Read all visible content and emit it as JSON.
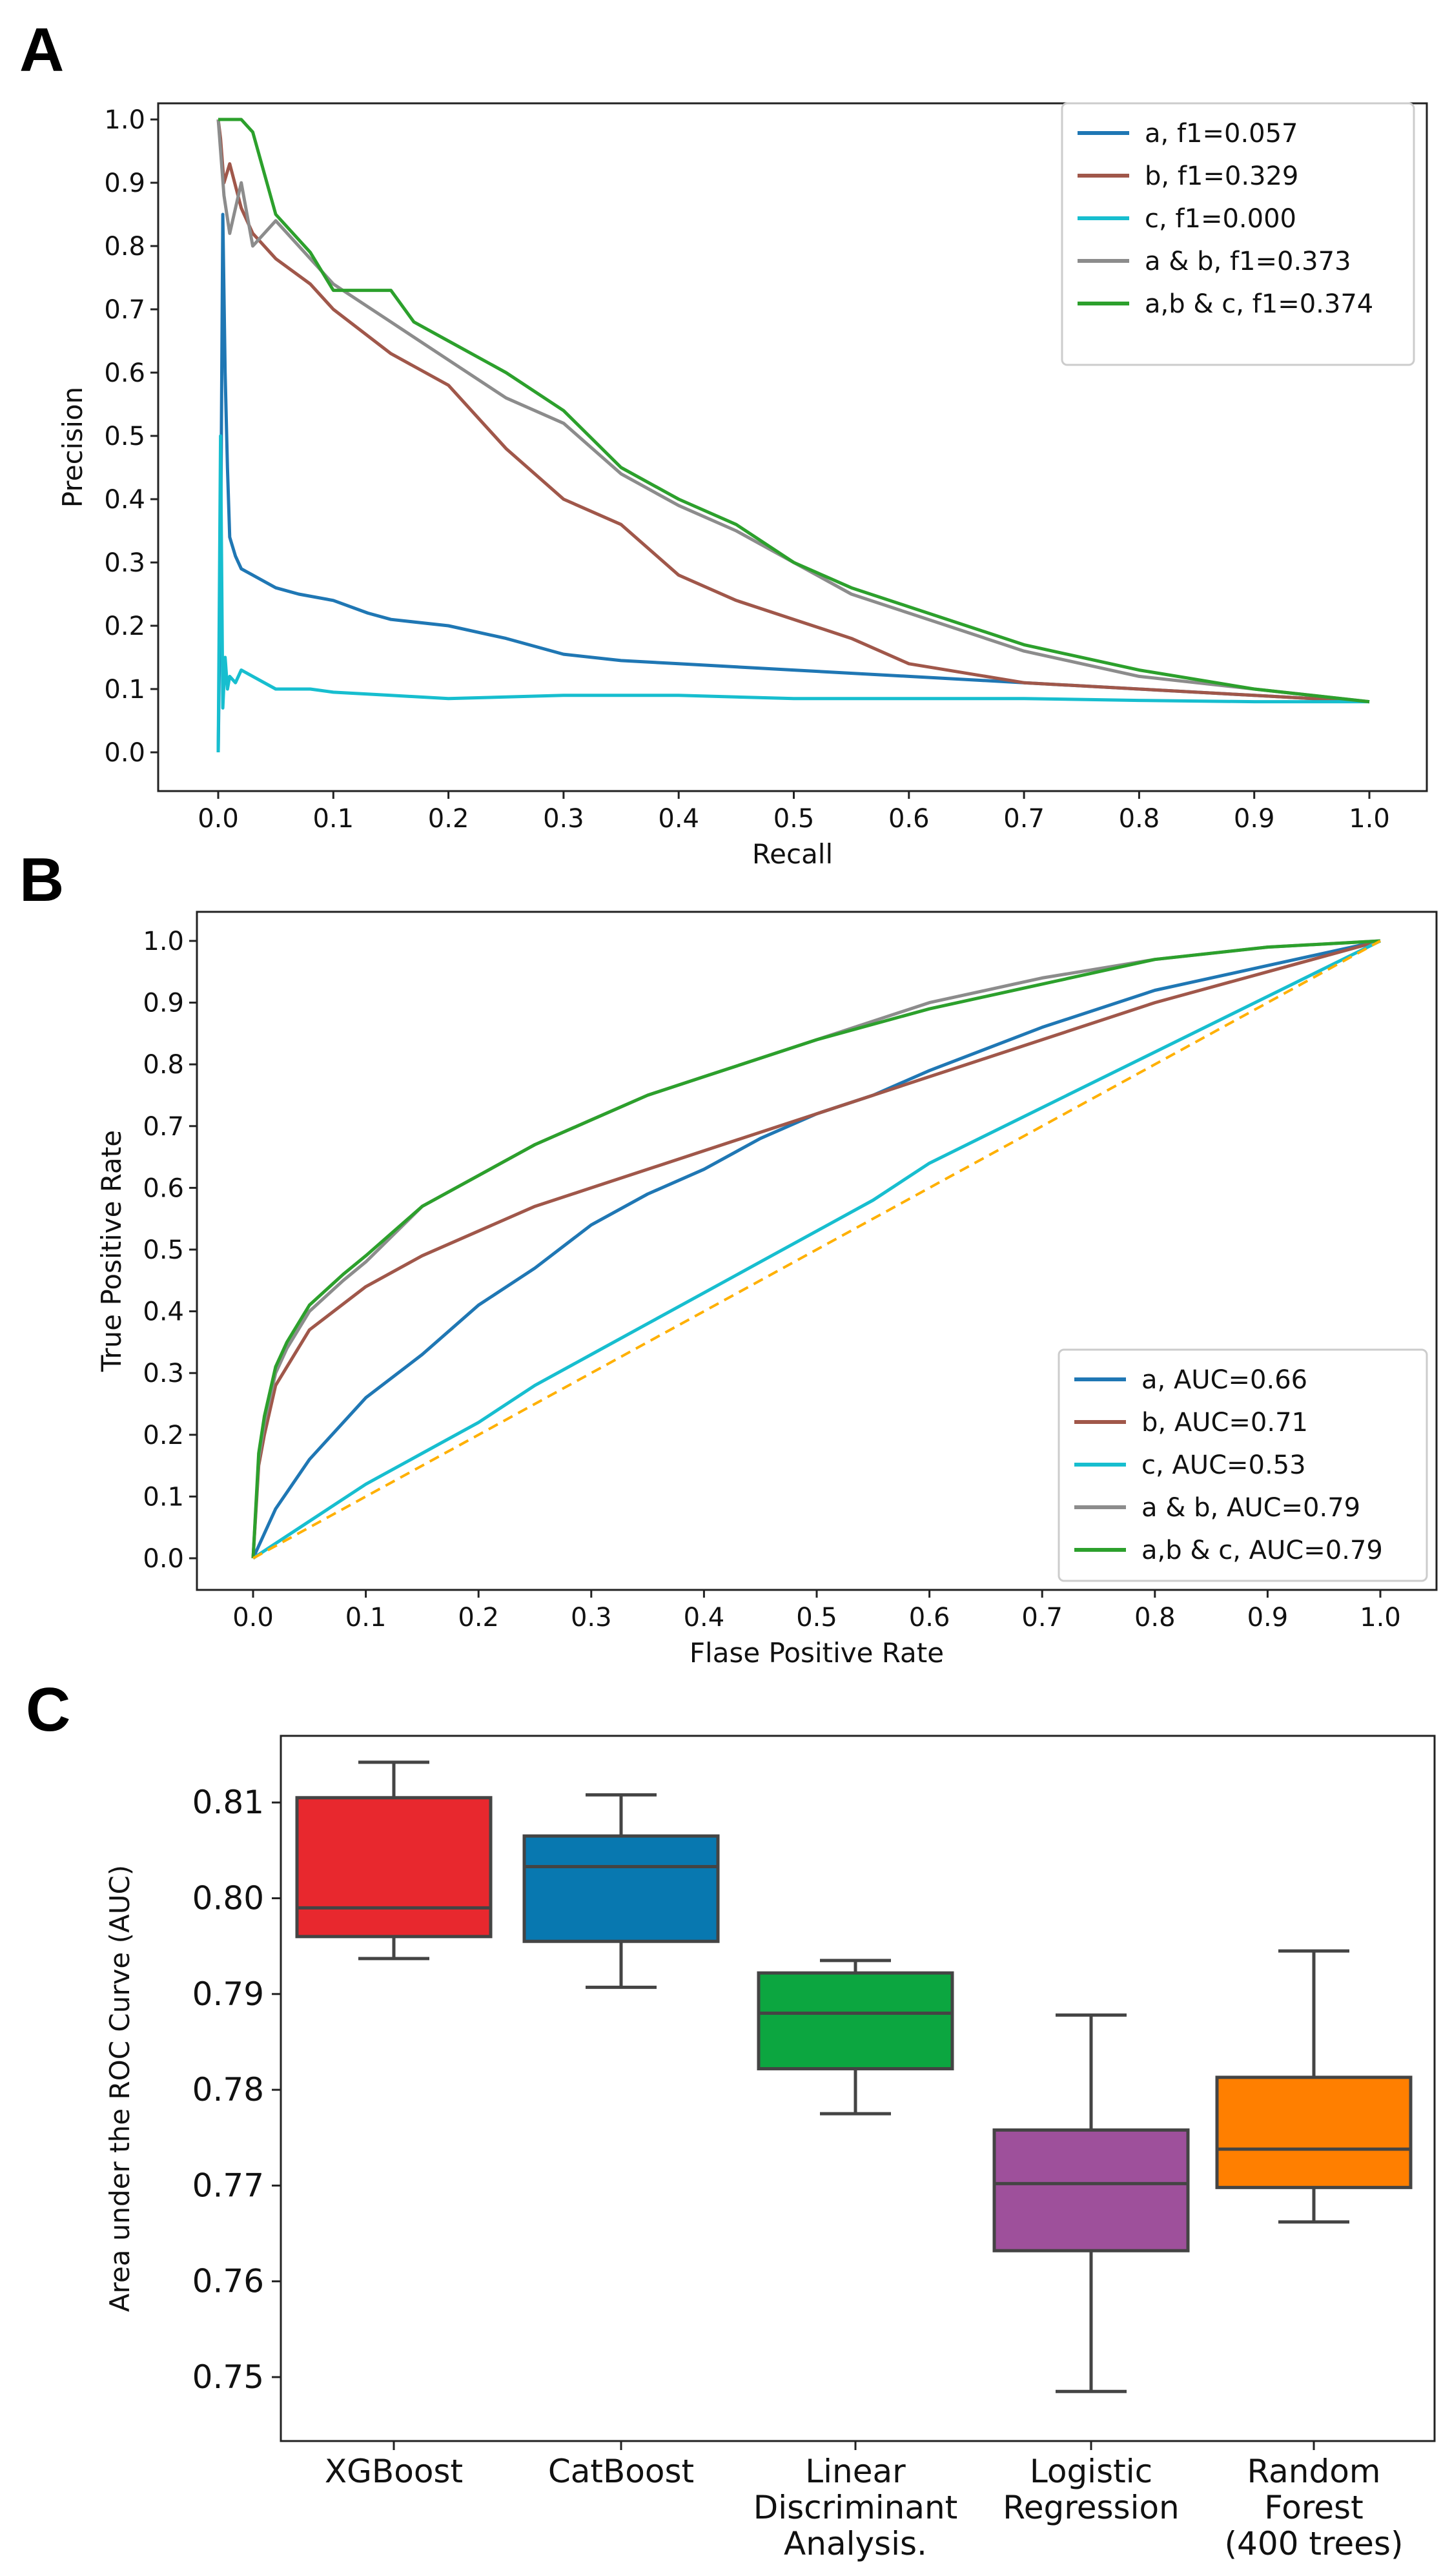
{
  "panels": {
    "a": "A",
    "b": "B",
    "c": "C"
  },
  "chart_data": [
    {
      "type": "line",
      "title": "",
      "xlabel": "Recall",
      "ylabel": "Precision",
      "xlim": [
        0,
        1
      ],
      "ylim": [
        0,
        1
      ],
      "xticks": [
        "0.0",
        "0.1",
        "0.2",
        "0.3",
        "0.4",
        "0.5",
        "0.6",
        "0.7",
        "0.8",
        "0.9",
        "1.0"
      ],
      "yticks": [
        "0.0",
        "0.1",
        "0.2",
        "0.3",
        "0.4",
        "0.5",
        "0.6",
        "0.7",
        "0.8",
        "0.9",
        "1.0"
      ],
      "legend_position": "top-right",
      "series": [
        {
          "name": "a, f1=0.057",
          "color": "#1f77b4",
          "x": [
            0,
            0.002,
            0.004,
            0.006,
            0.008,
            0.01,
            0.015,
            0.02,
            0.03,
            0.05,
            0.07,
            0.1,
            0.13,
            0.15,
            0.2,
            0.25,
            0.3,
            0.35,
            0.4,
            0.5,
            0.6,
            0.7,
            0.8,
            0.9,
            1.0
          ],
          "y": [
            0,
            0.3,
            0.85,
            0.6,
            0.45,
            0.34,
            0.31,
            0.29,
            0.28,
            0.26,
            0.25,
            0.24,
            0.22,
            0.21,
            0.2,
            0.18,
            0.155,
            0.145,
            0.14,
            0.13,
            0.12,
            0.11,
            0.1,
            0.09,
            0.08
          ]
        },
        {
          "name": "b, f1=0.329",
          "color": "#a0574a",
          "x": [
            0,
            0.002,
            0.005,
            0.01,
            0.02,
            0.03,
            0.05,
            0.08,
            0.1,
            0.15,
            0.2,
            0.25,
            0.3,
            0.35,
            0.4,
            0.45,
            0.5,
            0.55,
            0.6,
            0.7,
            0.8,
            0.9,
            1.0
          ],
          "y": [
            1.0,
            0.97,
            0.9,
            0.93,
            0.86,
            0.82,
            0.78,
            0.74,
            0.7,
            0.63,
            0.58,
            0.48,
            0.4,
            0.36,
            0.28,
            0.24,
            0.21,
            0.18,
            0.14,
            0.11,
            0.1,
            0.09,
            0.08
          ]
        },
        {
          "name": "c, f1=0.000",
          "color": "#17becf",
          "x": [
            0,
            0.002,
            0.004,
            0.006,
            0.008,
            0.01,
            0.015,
            0.02,
            0.03,
            0.05,
            0.08,
            0.1,
            0.15,
            0.2,
            0.3,
            0.4,
            0.5,
            0.6,
            0.7,
            0.8,
            0.9,
            1.0
          ],
          "y": [
            0,
            0.5,
            0.07,
            0.15,
            0.1,
            0.12,
            0.11,
            0.13,
            0.12,
            0.1,
            0.1,
            0.095,
            0.09,
            0.085,
            0.09,
            0.09,
            0.085,
            0.085,
            0.085,
            0.082,
            0.08,
            0.08
          ]
        },
        {
          "name": "a & b, f1=0.373",
          "color": "#8c8c8c",
          "x": [
            0,
            0.005,
            0.01,
            0.02,
            0.03,
            0.05,
            0.08,
            0.1,
            0.15,
            0.2,
            0.25,
            0.3,
            0.35,
            0.4,
            0.45,
            0.5,
            0.55,
            0.6,
            0.7,
            0.8,
            0.9,
            1.0
          ],
          "y": [
            1.0,
            0.88,
            0.82,
            0.9,
            0.8,
            0.84,
            0.78,
            0.74,
            0.68,
            0.62,
            0.56,
            0.52,
            0.44,
            0.39,
            0.35,
            0.3,
            0.25,
            0.22,
            0.16,
            0.12,
            0.1,
            0.08
          ]
        },
        {
          "name": "a,b & c, f1=0.374",
          "color": "#2ca02c",
          "x": [
            0,
            0.005,
            0.01,
            0.02,
            0.03,
            0.05,
            0.08,
            0.1,
            0.15,
            0.17,
            0.2,
            0.25,
            0.3,
            0.35,
            0.4,
            0.45,
            0.5,
            0.55,
            0.6,
            0.7,
            0.8,
            0.9,
            1.0
          ],
          "y": [
            1.0,
            1.0,
            1.0,
            1.0,
            0.98,
            0.85,
            0.79,
            0.73,
            0.73,
            0.68,
            0.65,
            0.6,
            0.54,
            0.45,
            0.4,
            0.36,
            0.3,
            0.26,
            0.23,
            0.17,
            0.13,
            0.1,
            0.08
          ]
        }
      ]
    },
    {
      "type": "line",
      "title": "",
      "xlabel": "Flase Positive Rate",
      "ylabel": "True Positive Rate",
      "xlim": [
        0,
        1
      ],
      "ylim": [
        0,
        1
      ],
      "xticks": [
        "0.0",
        "0.1",
        "0.2",
        "0.3",
        "0.4",
        "0.5",
        "0.6",
        "0.7",
        "0.8",
        "0.9",
        "1.0"
      ],
      "yticks": [
        "0.0",
        "0.1",
        "0.2",
        "0.3",
        "0.4",
        "0.5",
        "0.6",
        "0.7",
        "0.8",
        "0.9",
        "1.0"
      ],
      "legend_position": "bottom-right",
      "series": [
        {
          "name": "a, AUC=0.66",
          "color": "#1f77b4",
          "x": [
            0,
            0.02,
            0.05,
            0.1,
            0.15,
            0.2,
            0.25,
            0.3,
            0.35,
            0.4,
            0.45,
            0.5,
            0.55,
            0.6,
            0.7,
            0.8,
            0.9,
            1.0
          ],
          "y": [
            0,
            0.08,
            0.16,
            0.26,
            0.33,
            0.41,
            0.47,
            0.54,
            0.59,
            0.63,
            0.68,
            0.72,
            0.75,
            0.79,
            0.86,
            0.92,
            0.96,
            1.0
          ]
        },
        {
          "name": "b, AUC=0.71",
          "color": "#a0574a",
          "x": [
            0,
            0.005,
            0.01,
            0.02,
            0.05,
            0.1,
            0.15,
            0.2,
            0.25,
            0.3,
            0.4,
            0.5,
            0.6,
            0.7,
            0.8,
            0.9,
            1.0
          ],
          "y": [
            0,
            0.15,
            0.2,
            0.28,
            0.37,
            0.44,
            0.49,
            0.53,
            0.57,
            0.6,
            0.66,
            0.72,
            0.78,
            0.84,
            0.9,
            0.95,
            1.0
          ]
        },
        {
          "name": "c, AUC=0.53",
          "color": "#17becf",
          "x": [
            0,
            0.05,
            0.1,
            0.15,
            0.2,
            0.25,
            0.3,
            0.35,
            0.4,
            0.45,
            0.5,
            0.55,
            0.6,
            0.7,
            0.8,
            0.9,
            1.0
          ],
          "y": [
            0,
            0.06,
            0.12,
            0.17,
            0.22,
            0.28,
            0.33,
            0.38,
            0.43,
            0.48,
            0.53,
            0.58,
            0.64,
            0.73,
            0.82,
            0.91,
            1.0
          ]
        },
        {
          "name": "a & b, AUC=0.79",
          "color": "#8c8c8c",
          "x": [
            0,
            0.005,
            0.01,
            0.02,
            0.03,
            0.05,
            0.08,
            0.1,
            0.15,
            0.2,
            0.25,
            0.3,
            0.35,
            0.4,
            0.5,
            0.6,
            0.7,
            0.8,
            0.9,
            1.0
          ],
          "y": [
            0,
            0.16,
            0.22,
            0.3,
            0.34,
            0.4,
            0.45,
            0.48,
            0.57,
            0.62,
            0.67,
            0.71,
            0.75,
            0.78,
            0.84,
            0.9,
            0.94,
            0.97,
            0.99,
            1.0
          ]
        },
        {
          "name": "a,b & c, AUC=0.79",
          "color": "#2ca02c",
          "x": [
            0,
            0.005,
            0.01,
            0.02,
            0.03,
            0.05,
            0.08,
            0.1,
            0.15,
            0.2,
            0.25,
            0.3,
            0.35,
            0.4,
            0.5,
            0.6,
            0.7,
            0.8,
            0.9,
            1.0
          ],
          "y": [
            0,
            0.17,
            0.23,
            0.31,
            0.35,
            0.41,
            0.46,
            0.49,
            0.57,
            0.62,
            0.67,
            0.71,
            0.75,
            0.78,
            0.84,
            0.89,
            0.93,
            0.97,
            0.99,
            1.0
          ]
        },
        {
          "name": "chance",
          "color": "#ffb000",
          "dashed": true,
          "legend": false,
          "x": [
            0,
            1
          ],
          "y": [
            0,
            1
          ]
        }
      ]
    },
    {
      "type": "box",
      "title": "",
      "xlabel": "",
      "ylabel": "Area under the ROC Curve (AUC)",
      "ylim": [
        0.7455,
        0.8165
      ],
      "yticks": [
        0.75,
        0.76,
        0.77,
        0.78,
        0.79,
        0.8,
        0.81
      ],
      "ytick_labels": [
        "0.75",
        "0.76",
        "0.77",
        "0.78",
        "0.79",
        "0.80",
        "0.81"
      ],
      "categories": [
        {
          "name": "XGBoost",
          "color": "#e8282e",
          "whisker_low": 0.7937,
          "q1": 0.796,
          "median": 0.799,
          "q3": 0.8105,
          "whisker_high": 0.8142
        },
        {
          "name": "CatBoost",
          "color": "#0878b0",
          "whisker_low": 0.7907,
          "q1": 0.7955,
          "median": 0.8033,
          "q3": 0.8065,
          "whisker_high": 0.8108
        },
        {
          "name": "Linear Discriminant Analysis.",
          "color": "#0ca640",
          "whisker_low": 0.7775,
          "q1": 0.7822,
          "median": 0.788,
          "q3": 0.7922,
          "whisker_high": 0.7935
        },
        {
          "name": "Logistic Regression",
          "color": "#9e509b",
          "whisker_low": 0.7485,
          "q1": 0.7632,
          "median": 0.7702,
          "q3": 0.7758,
          "whisker_high": 0.7878
        },
        {
          "name": "Random Forest (400 trees)",
          "color": "#ff7f00",
          "whisker_low": 0.7662,
          "q1": 0.7698,
          "median": 0.7738,
          "q3": 0.7813,
          "whisker_high": 0.7945
        }
      ]
    }
  ]
}
